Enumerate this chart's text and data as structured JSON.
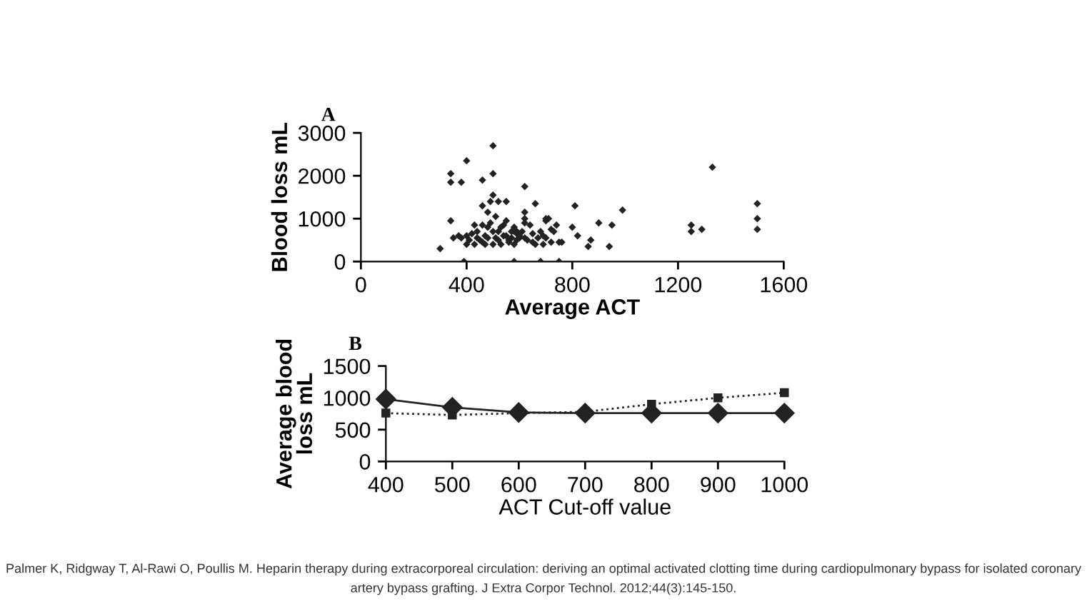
{
  "chart_data": [
    {
      "type": "scatter",
      "title": "A",
      "xlabel": "Average ACT",
      "ylabel": "Blood loss mL",
      "marker": "diamond",
      "grid": false,
      "legend": false,
      "xlim": [
        0,
        1600
      ],
      "xticks": [
        0,
        400,
        800,
        1200,
        1600
      ],
      "ylim": [
        0,
        3000
      ],
      "yticks": [
        0,
        1000,
        2000,
        3000
      ],
      "series": [
        {
          "color": "#222222",
          "x": [
            300,
            400,
            500,
            340,
            340,
            380,
            500,
            460,
            620,
            500,
            340,
            1330,
            1500,
            1500,
            1500,
            1250,
            1250,
            1290,
            990,
            810,
            660,
            900,
            950,
            940,
            860,
            870,
            820,
            800,
            550,
            520,
            460,
            490,
            620,
            620,
            700,
            700,
            390,
            580,
            680,
            750,
            350,
            370,
            380,
            400,
            410,
            420,
            430,
            440,
            450,
            460,
            460,
            470,
            480,
            480,
            490,
            500,
            500,
            510,
            520,
            520,
            530,
            540,
            550,
            550,
            560,
            570,
            570,
            580,
            580,
            590,
            590,
            600,
            610,
            620,
            630,
            640,
            650,
            660,
            670,
            680,
            690,
            700,
            710,
            720,
            730,
            740,
            750,
            760,
            430,
            470,
            510,
            540,
            560,
            590,
            620,
            650,
            690,
            720,
            480,
            530,
            580,
            600,
            400,
            440
          ],
          "values": [
            300,
            2350,
            2700,
            2050,
            1850,
            1850,
            2050,
            1900,
            1750,
            1550,
            950,
            2200,
            1350,
            1000,
            750,
            850,
            700,
            750,
            1200,
            1300,
            1350,
            900,
            850,
            350,
            350,
            500,
            600,
            800,
            1400,
            1400,
            1300,
            1400,
            1150,
            1000,
            1000,
            950,
            0,
            0,
            0,
            0,
            550,
            600,
            550,
            600,
            500,
            650,
            400,
            700,
            500,
            850,
            450,
            600,
            800,
            550,
            900,
            400,
            700,
            1050,
            500,
            700,
            400,
            850,
            600,
            950,
            450,
            700,
            550,
            400,
            800,
            650,
            500,
            550,
            700,
            900,
            500,
            850,
            650,
            400,
            550,
            700,
            400,
            550,
            1000,
            450,
            700,
            850,
            450,
            450,
            850,
            400,
            550,
            600,
            500,
            700,
            550,
            450,
            600,
            750,
            1150,
            800,
            700,
            600,
            400,
            550
          ]
        }
      ]
    },
    {
      "type": "line",
      "title": "B",
      "xlabel": "ACT Cut-off value",
      "ylabel": "Average blood\nloss mL",
      "grid": false,
      "legend": false,
      "xlim": [
        400,
        1000
      ],
      "xticks": [
        400,
        500,
        600,
        700,
        800,
        900,
        1000
      ],
      "ylim": [
        0,
        1500
      ],
      "yticks": [
        0,
        500,
        1000,
        1500
      ],
      "x": [
        400,
        500,
        600,
        700,
        800,
        900,
        1000
      ],
      "series": [
        {
          "color": "#222222",
          "marker": "diamond",
          "line_style": "solid",
          "values": [
            980,
            850,
            770,
            760,
            760,
            760,
            760
          ]
        },
        {
          "color": "#222222",
          "marker": "square",
          "line_style": "dotted",
          "values": [
            760,
            730,
            760,
            780,
            900,
            1000,
            1080
          ]
        }
      ],
      "annotations": [
        "Palmer K, Ridgway T, Al-Rawi O, Poullis M. Heparin therapy during extracorporeal circulation: deriving an optimal activated clotting time during cardiopulmonary bypass for isolated coronary artery bypass grafting. J Extra Corpor Technol. 2012;44(3):145-150."
      ]
    }
  ]
}
